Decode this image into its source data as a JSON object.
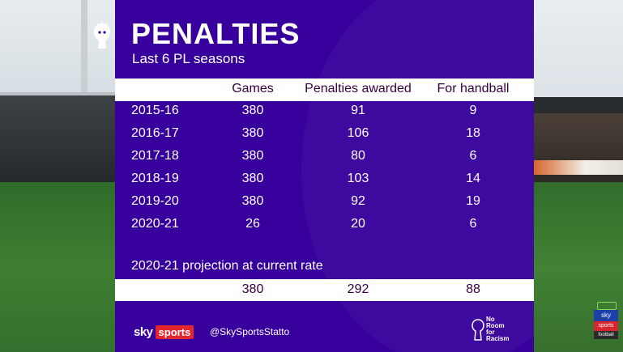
{
  "graphic": {
    "title": "PENALTIES",
    "subtitle": "Last 6 PL seasons"
  },
  "table": {
    "columns": [
      "Games",
      "Penalties awarded",
      "For handball"
    ],
    "rows": [
      {
        "season": "2015-16",
        "games": "380",
        "penalties": "91",
        "handball": "9"
      },
      {
        "season": "2016-17",
        "games": "380",
        "penalties": "106",
        "handball": "18"
      },
      {
        "season": "2017-18",
        "games": "380",
        "penalties": "80",
        "handball": "6"
      },
      {
        "season": "2018-19",
        "games": "380",
        "penalties": "103",
        "handball": "14"
      },
      {
        "season": "2019-20",
        "games": "380",
        "penalties": "92",
        "handball": "19"
      },
      {
        "season": "2020-21",
        "games": "26",
        "penalties": "20",
        "handball": "6"
      }
    ]
  },
  "projection": {
    "label": "2020-21 projection at current rate",
    "games": "380",
    "penalties": "292",
    "handball": "88"
  },
  "footer": {
    "sky": "sky",
    "sports": "sports",
    "handle": "@SkySportsStatto",
    "campaign_lines": [
      "No",
      "Room",
      "for",
      "Racism"
    ]
  },
  "corner_badge": {
    "top": "sky",
    "middle": "sports",
    "bottom": "football"
  },
  "colors": {
    "panel_purple": "#37009c",
    "text_dark": "#37003c",
    "sky_red": "#e5252c"
  }
}
